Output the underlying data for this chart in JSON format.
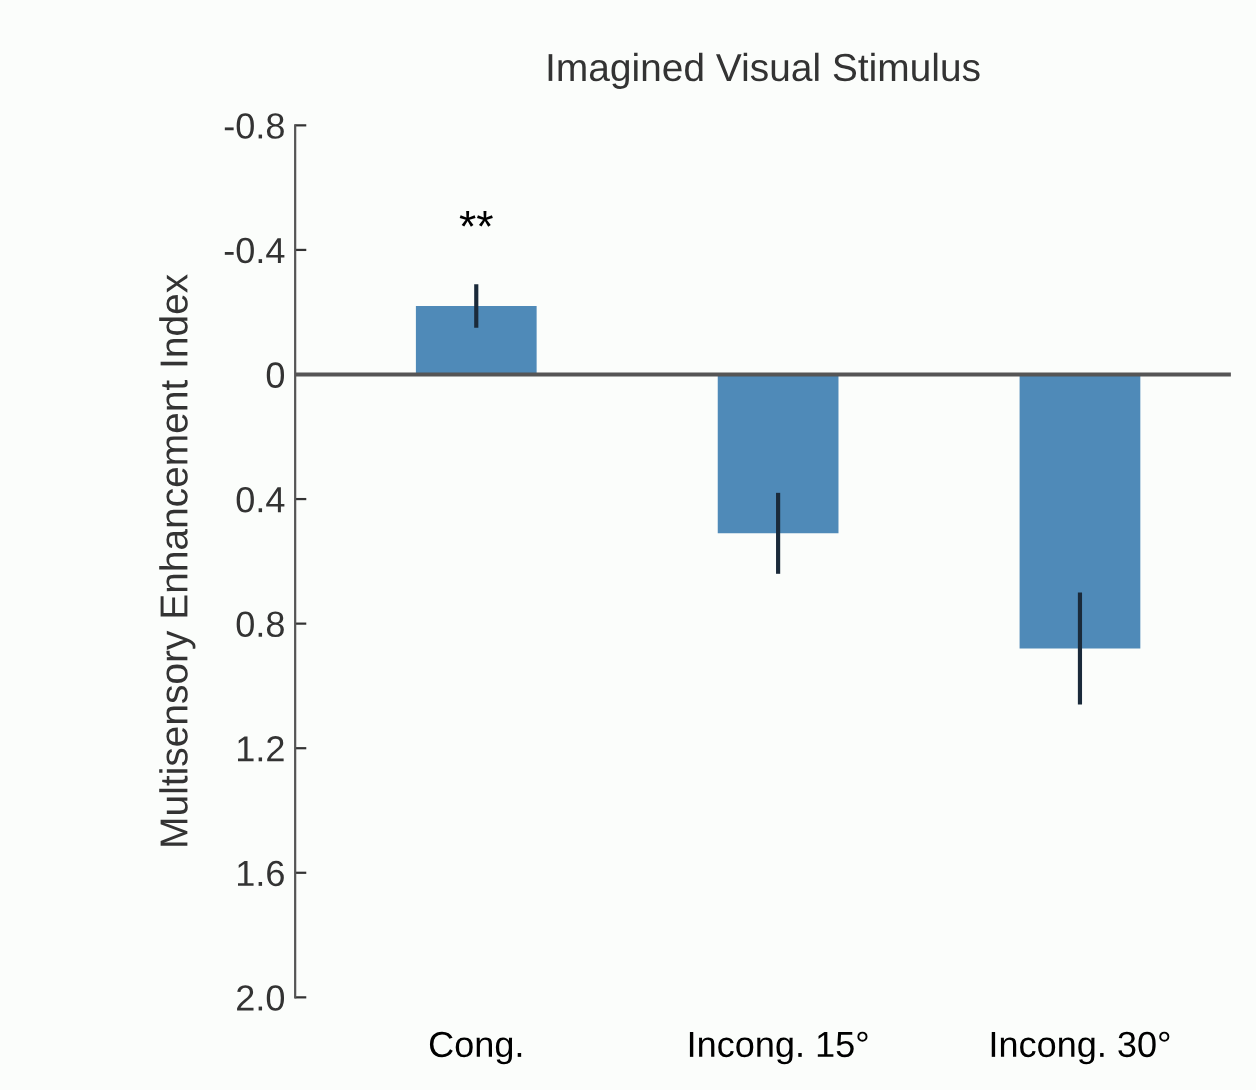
{
  "chart_data": {
    "type": "bar",
    "title": "Imagined Visual Stimulus",
    "ylabel": "Multisensory Enhancement Index",
    "categories": [
      "Cong.",
      "Incong. 15°",
      "Incong. 30°"
    ],
    "values": [
      -0.22,
      0.51,
      0.88
    ],
    "errors": [
      0.07,
      0.13,
      0.18
    ],
    "color": "#4f8ab8",
    "ylim": [
      2.0,
      -0.8
    ],
    "yticks": [
      {
        "value": -0.8,
        "label": "-0.8"
      },
      {
        "value": -0.4,
        "label": "-0.4"
      },
      0,
      0.4,
      0.8,
      1.2,
      1.6,
      {
        "value": 2.0,
        "label": "2.0"
      }
    ],
    "ref_lines": [
      {
        "axis": "y",
        "value": 0,
        "color": "#555555"
      }
    ],
    "annotations": [
      "**"
    ],
    "grid": false,
    "legend": false
  }
}
